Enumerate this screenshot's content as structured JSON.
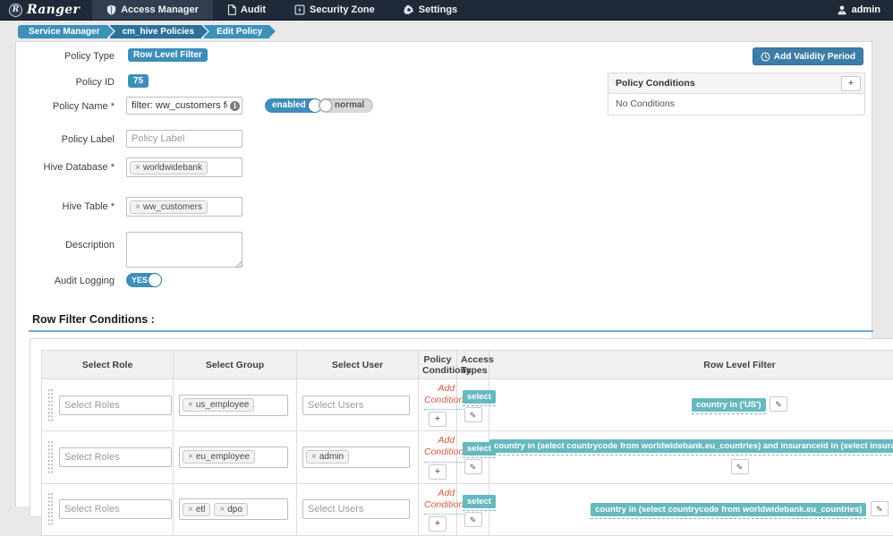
{
  "navbar": {
    "brand": "Ranger",
    "items": [
      {
        "label": "Access Manager",
        "icon": "shield-icon",
        "active": true
      },
      {
        "label": "Audit",
        "icon": "document-icon",
        "active": false
      },
      {
        "label": "Security Zone",
        "icon": "security-zone-icon",
        "active": false
      },
      {
        "label": "Settings",
        "icon": "gear-icon",
        "active": false
      }
    ],
    "user": "admin"
  },
  "breadcrumbs": [
    {
      "label": "Service Manager",
      "dark": false
    },
    {
      "label": "cm_hive Policies",
      "dark": true
    },
    {
      "label": "Edit Policy",
      "dark": false
    }
  ],
  "form": {
    "policy_type_label": "Policy Type",
    "policy_type_value": "Row Level Filter",
    "policy_id_label": "Policy ID",
    "policy_id_value": "75",
    "policy_name_label": "Policy Name *",
    "policy_name_value": "filter: ww_customers for consen",
    "enabled_toggle": "enabled",
    "normal_toggle": "normal",
    "policy_label_label": "Policy Label",
    "policy_label_placeholder": "Policy Label",
    "hive_database_label": "Hive Database *",
    "hive_database_value": "worldwidebank",
    "hive_table_label": "Hive Table *",
    "hive_table_value": "ww_customers",
    "description_label": "Description",
    "description_value": "",
    "audit_logging_label": "Audit Logging",
    "audit_logging_value": "YES"
  },
  "validity_button_label": "Add Validity Period",
  "policy_conditions_panel": {
    "title": "Policy Conditions",
    "add_button": "+",
    "empty_text": "No Conditions"
  },
  "row_filter_section": {
    "title": "Row Filter Conditions :",
    "columns": [
      "Select Role",
      "Select Group",
      "Select User",
      "Policy Conditions",
      "Access Types",
      "Row Level Filter"
    ],
    "roles_placeholder": "Select Roles",
    "users_placeholder": "Select Users",
    "add_conditions_label": "Add Conditions",
    "plus_label": "+",
    "access_type_value": "select",
    "rows": [
      {
        "groups": [
          "us_employee"
        ],
        "users": [],
        "filter": "country in ('US')",
        "filter_layout": "inline"
      },
      {
        "groups": [
          "eu_employee"
        ],
        "users": [
          "admin"
        ],
        "filter": "country in (select countrycode from worldwidebank.eu_countries) and insuranceid in (select insuranceid from consent_master.consent_data",
        "filter_layout": "full"
      },
      {
        "groups": [
          "etl",
          "dpo"
        ],
        "users": [],
        "filter": "country in (select countrycode from worldwidebank.eu_countries)",
        "filter_layout": "inline"
      }
    ]
  },
  "colors": {
    "navbar_bg": "#1f2937",
    "accent_blue": "#3e8ebb",
    "teal_badge": "#68b8bf",
    "danger_link": "#d15b47",
    "breadcrumb_light": "#3d91b9",
    "breadcrumb_dark": "#2b7199"
  }
}
